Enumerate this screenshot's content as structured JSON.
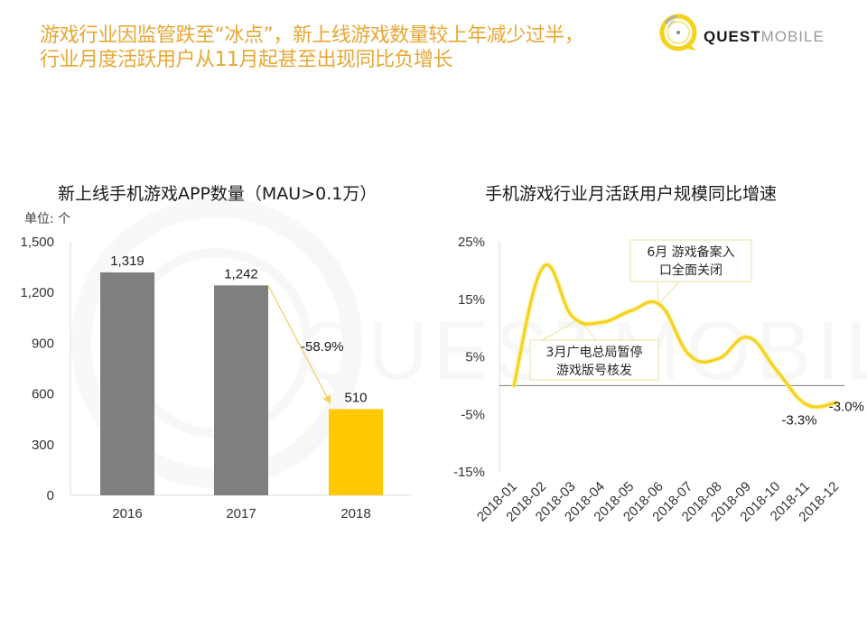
{
  "headline": {
    "line1": "游戏行业因监管跌至“冰点”，新上线游戏数量较上年减少过半，",
    "line2": "行业月度活跃用户从11月起甚至出现同比负增长",
    "color": "#e8a735"
  },
  "logo": {
    "bold": "QUEST",
    "light": "MOBILE",
    "icon": "quest-mobile-logo-icon",
    "color": "#f5d21a"
  },
  "watermark": "QUESTMOBILE",
  "chart_data": [
    {
      "type": "bar",
      "title": "新上线手机游戏APP数量（MAU>0.1万）",
      "unit_label": "单位: 个",
      "categories": [
        "2016",
        "2017",
        "2018"
      ],
      "values": [
        1319,
        1242,
        510
      ],
      "value_labels": [
        "1,319",
        "1,242",
        "510"
      ],
      "colors": [
        "#7f7f7f",
        "#7f7f7f",
        "#ffc800"
      ],
      "ylim": [
        0,
        1500
      ],
      "yticks": [
        0,
        300,
        600,
        900,
        1200,
        1500
      ],
      "ytick_labels": [
        "0",
        "300",
        "600",
        "900",
        "1,200",
        "1,500"
      ],
      "xlabel": "",
      "ylabel": "",
      "grid": false,
      "annotation": {
        "text": "-58.9%",
        "from": "2017",
        "to": "2018",
        "arrow_color": "#f0d060"
      }
    },
    {
      "type": "line",
      "title": "手机游戏行业月活跃用户规模同比增速",
      "x": [
        "2018-01",
        "2018-02",
        "2018-03",
        "2018-04",
        "2018-05",
        "2018-06",
        "2018-07",
        "2018-08",
        "2018-09",
        "2018-10",
        "2018-11",
        "2018-12"
      ],
      "series": [
        {
          "name": "月活跃用户规模同比增速",
          "values": [
            0.0,
            20.6,
            12.0,
            11.0,
            13.0,
            14.0,
            5.3,
            4.7,
            8.4,
            2.5,
            -3.3,
            -3.0
          ],
          "color": "#f5d21a"
        }
      ],
      "ylim": [
        -15,
        25
      ],
      "yticks": [
        -15,
        -5,
        5,
        15,
        25
      ],
      "ytick_labels": [
        "-15%",
        "-5%",
        "5%",
        "15%",
        "25%"
      ],
      "xlabel": "",
      "ylabel": "",
      "grid": false,
      "data_labels": [
        {
          "x": "2018-11",
          "text": "-3.3%"
        },
        {
          "x": "2018-12",
          "text": "-3.0%"
        }
      ],
      "annotations": [
        {
          "x": "2018-03",
          "lines": [
            "3月广电总局暂停",
            "游戏版号核发"
          ]
        },
        {
          "x": "2018-06",
          "lines": [
            "6月 游戏备案入",
            "口全面关闭"
          ]
        }
      ]
    }
  ]
}
